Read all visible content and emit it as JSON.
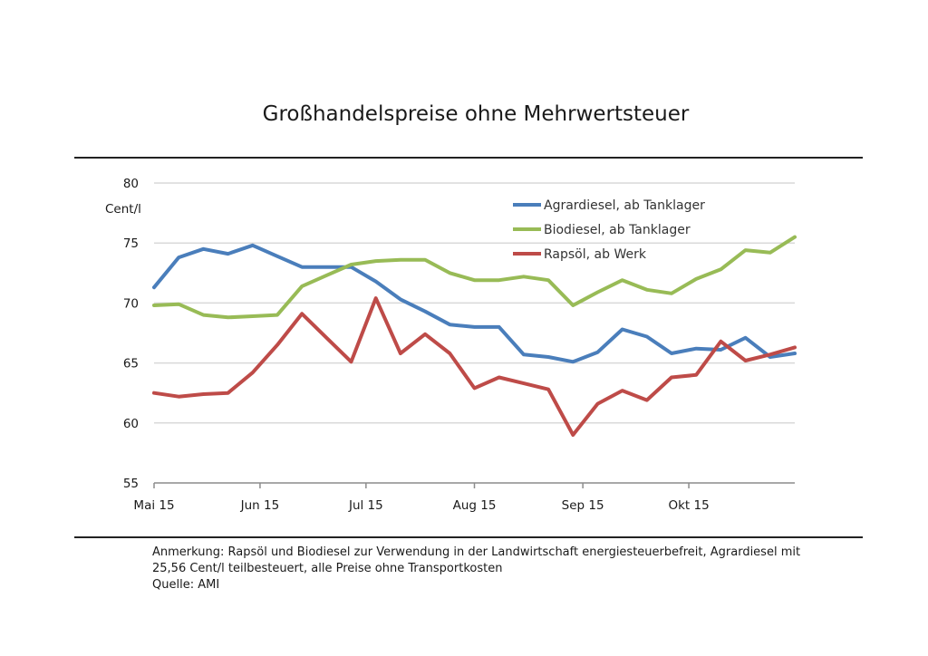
{
  "chart_data": {
    "type": "line",
    "title": "Großhandelspreise ohne Mehrwertsteuer",
    "ylabel": "Cent/l",
    "xlabel": "",
    "ylim": [
      55,
      80
    ],
    "yticks": [
      55,
      60,
      65,
      70,
      75,
      80
    ],
    "x_ticks": [
      {
        "label": "Mai 15",
        "index": 0
      },
      {
        "label": "Jun 15",
        "index": 4.3
      },
      {
        "label": "Jul 15",
        "index": 8.6
      },
      {
        "label": "Aug 15",
        "index": 13
      },
      {
        "label": "Sep 15",
        "index": 17.4
      },
      {
        "label": "Okt 15",
        "index": 21.7
      }
    ],
    "x_count": 27,
    "legend_position": "top-right",
    "series": [
      {
        "name": "Agrardiesel, ab Tanklager",
        "color": "#4a7ebb",
        "values": [
          71.3,
          73.8,
          74.5,
          74.1,
          74.8,
          73.9,
          73.0,
          73.0,
          73.0,
          71.8,
          70.3,
          69.3,
          68.2,
          68.0,
          68.0,
          65.7,
          65.5,
          65.1,
          65.9,
          67.8,
          67.2,
          65.8,
          66.2,
          66.1,
          67.1,
          65.5,
          65.8
        ]
      },
      {
        "name": "Biodiesel, ab Tanklager",
        "color": "#98bb56",
        "values": [
          69.8,
          69.9,
          69.0,
          68.8,
          68.9,
          69.0,
          71.4,
          72.3,
          73.2,
          73.5,
          73.6,
          73.6,
          72.5,
          71.9,
          71.9,
          72.2,
          71.9,
          69.8,
          70.9,
          71.9,
          71.1,
          70.8,
          72.0,
          72.8,
          74.4,
          74.2,
          75.5
        ]
      },
      {
        "name": "Rapsöl, ab Werk",
        "color": "#be4b48",
        "values": [
          62.5,
          62.2,
          62.4,
          62.5,
          64.2,
          66.5,
          69.1,
          67.1,
          65.1,
          70.4,
          65.8,
          67.4,
          65.8,
          62.9,
          63.8,
          63.3,
          62.8,
          59.0,
          61.6,
          62.7,
          61.9,
          63.8,
          64.0,
          66.8,
          65.2,
          65.7,
          66.3
        ]
      }
    ]
  },
  "notes": {
    "line1": "Anmerkung: Rapsöl und Biodiesel zur Verwendung in der Landwirtschaft energiesteuerbefreit, Agrardiesel mit",
    "line2": "25,56 Cent/l teilbesteuert, alle Preise ohne Transportkosten",
    "source": "Quelle: AMI"
  }
}
